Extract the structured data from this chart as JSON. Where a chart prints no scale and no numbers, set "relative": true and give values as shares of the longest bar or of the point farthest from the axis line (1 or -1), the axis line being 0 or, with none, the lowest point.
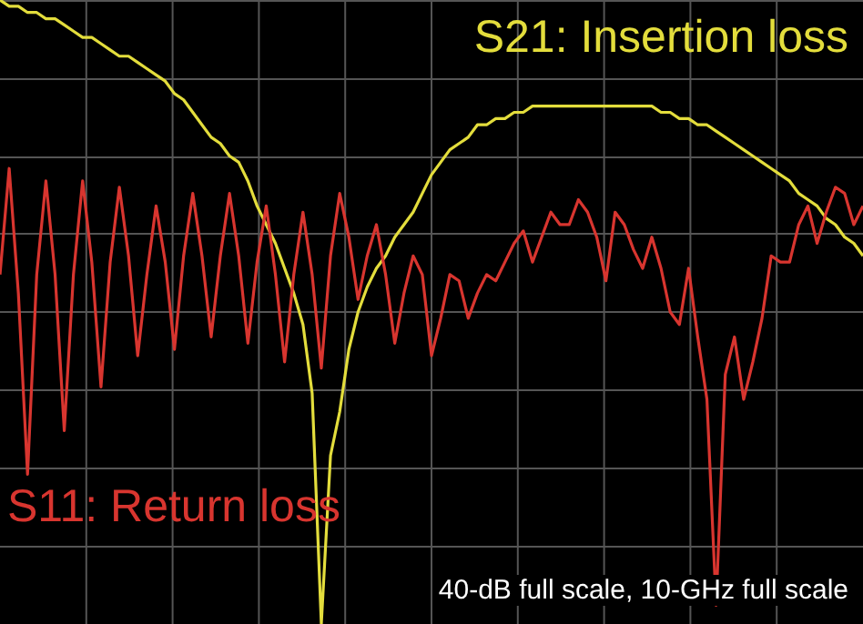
{
  "chart_data": {
    "type": "line",
    "relative": true,
    "grid": true,
    "annotations": [
      "40-dB full scale, 10-GHz full scale"
    ],
    "categories": [
      null,
      null,
      null,
      null,
      null,
      null,
      null,
      null,
      null,
      null,
      null,
      null,
      null,
      null,
      null,
      null,
      null,
      null,
      null,
      null,
      null,
      null,
      null,
      null,
      null,
      null,
      null,
      null,
      null,
      null,
      null,
      null,
      null,
      null,
      null,
      null,
      null,
      null,
      null,
      null,
      null,
      null,
      null,
      null,
      null,
      null,
      null,
      null,
      null,
      null,
      null,
      null,
      null,
      null,
      null,
      null,
      null,
      null,
      null,
      null,
      null,
      null,
      null,
      null,
      null,
      null,
      null,
      null,
      null,
      null,
      null,
      null,
      null,
      null,
      null,
      null,
      null,
      null,
      null,
      null,
      null,
      null,
      null,
      null,
      null,
      null,
      null,
      null,
      null,
      null,
      null,
      null,
      null,
      null,
      null
    ],
    "series": [
      {
        "name": "S21: Insertion loss",
        "color": "#e3dd3c",
        "values": [
          1.0,
          0.99,
          0.99,
          0.98,
          0.98,
          0.97,
          0.97,
          0.96,
          0.95,
          0.94,
          0.94,
          0.93,
          0.92,
          0.91,
          0.91,
          0.9,
          0.89,
          0.88,
          0.87,
          0.85,
          0.84,
          0.82,
          0.8,
          0.78,
          0.77,
          0.75,
          0.74,
          0.71,
          0.67,
          0.64,
          0.61,
          0.57,
          0.53,
          0.48,
          0.37,
          0,
          0.27,
          0.34,
          0.44,
          0.5,
          0.54,
          0.57,
          0.59,
          0.62,
          0.64,
          0.66,
          0.69,
          0.72,
          0.74,
          0.76,
          0.77,
          0.78,
          0.8,
          0.8,
          0.81,
          0.81,
          0.82,
          0.82,
          0.83,
          0.83,
          0.83,
          0.83,
          0.83,
          0.83,
          0.83,
          0.83,
          0.83,
          0.83,
          0.83,
          0.83,
          0.83,
          0.83,
          0.82,
          0.82,
          0.81,
          0.81,
          0.8,
          0.8,
          0.79,
          0.78,
          0.77,
          0.76,
          0.75,
          0.74,
          0.73,
          0.72,
          0.71,
          0.69,
          0.68,
          0.67,
          0.65,
          0.64,
          0.62,
          0.61,
          0.59
        ]
      },
      {
        "name": "S11: Return loss",
        "color": "#d8352f",
        "values": [
          0.56,
          0.73,
          0.53,
          0.24,
          0.56,
          0.71,
          0.56,
          0.31,
          0.56,
          0.71,
          0.58,
          0.38,
          0.58,
          0.7,
          0.59,
          0.43,
          0.56,
          0.67,
          0.58,
          0.44,
          0.59,
          0.69,
          0.59,
          0.46,
          0.59,
          0.69,
          0.59,
          0.45,
          0.58,
          0.67,
          0.56,
          0.42,
          0.56,
          0.66,
          0.56,
          0.41,
          0.59,
          0.69,
          0.62,
          0.52,
          0.59,
          0.64,
          0.56,
          0.45,
          0.53,
          0.59,
          0.56,
          0.43,
          0.49,
          0.56,
          0.55,
          0.49,
          0.53,
          0.56,
          0.55,
          0.58,
          0.61,
          0.63,
          0.58,
          0.62,
          0.66,
          0.64,
          0.64,
          0.68,
          0.66,
          0.62,
          0.55,
          0.66,
          0.64,
          0.6,
          0.57,
          0.62,
          0.57,
          0.5,
          0.48,
          0.57,
          0.46,
          0.36,
          0.03,
          0.4,
          0.46,
          0.36,
          0.42,
          0.49,
          0.59,
          0.58,
          0.58,
          0.64,
          0.67,
          0.61,
          0.66,
          0.7,
          0.69,
          0.64,
          0.67
        ]
      }
    ]
  }
}
